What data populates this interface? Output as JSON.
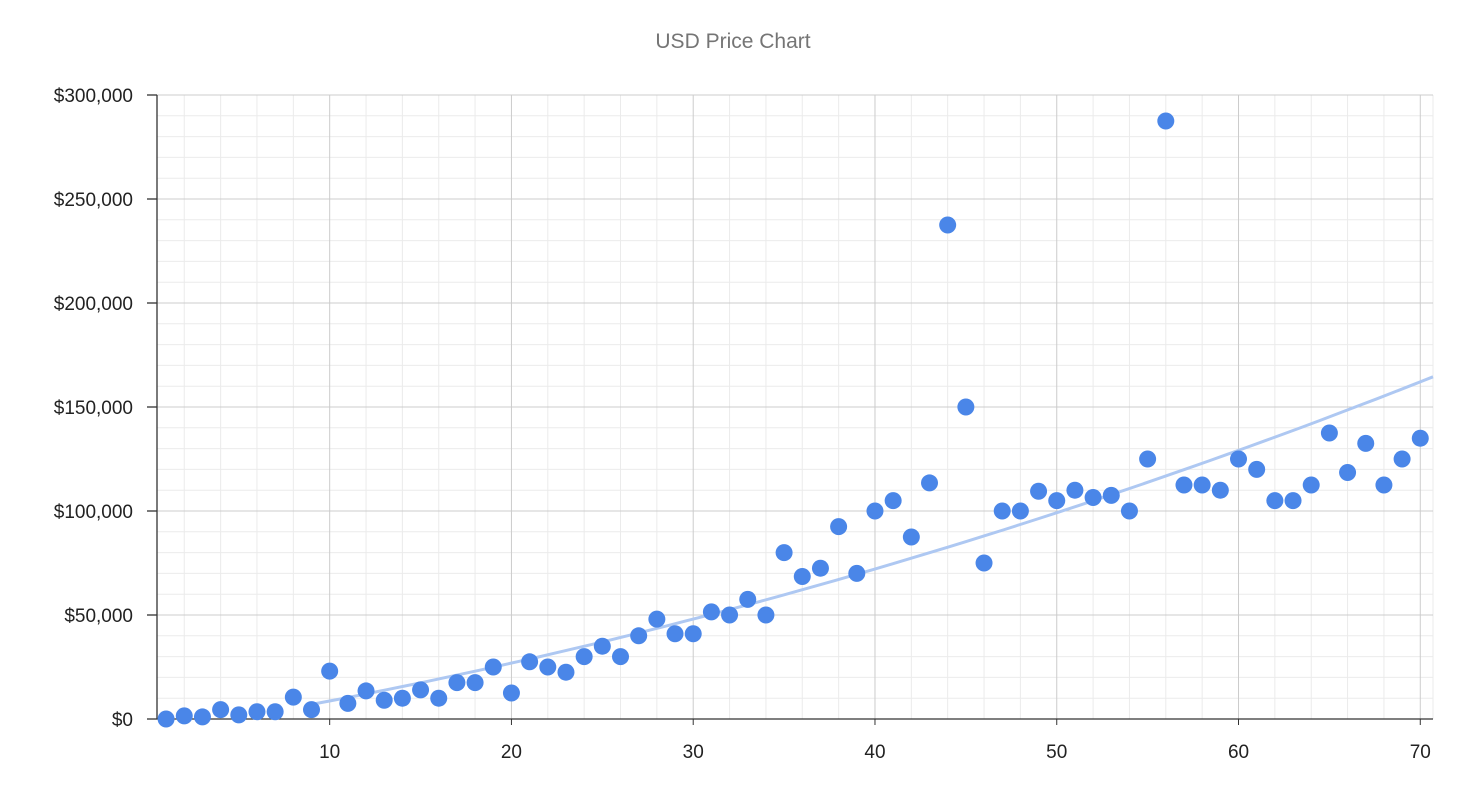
{
  "chart_data": {
    "type": "scatter",
    "title": "USD Price Chart",
    "xlabel": "",
    "ylabel": "",
    "xlim": [
      0.5,
      70.7
    ],
    "ylim": [
      0,
      300000
    ],
    "x_ticks": [
      10,
      20,
      30,
      40,
      50,
      60,
      70
    ],
    "x_tick_labels": [
      "10",
      "20",
      "30",
      "40",
      "50",
      "60",
      "70"
    ],
    "y_ticks": [
      0,
      50000,
      100000,
      150000,
      200000,
      250000,
      300000
    ],
    "y_tick_labels": [
      "$0",
      "$50,000",
      "$100,000",
      "$150,000",
      "$200,000",
      "$250,000",
      "$300,000"
    ],
    "grid": true,
    "legend": "none",
    "colors": {
      "points": "#4a86e8",
      "trendline": "#aec8f2",
      "major_grid": "#cccccc",
      "minor_grid": "#ebebeb",
      "axis": "#333333"
    },
    "series": [
      {
        "x": [
          1,
          2,
          3,
          4,
          5,
          6,
          7,
          8,
          9,
          10,
          11,
          12,
          13,
          14,
          15,
          16,
          17,
          18,
          19,
          20,
          21,
          22,
          23,
          24,
          25,
          26,
          27,
          28,
          29,
          30,
          31,
          32,
          33,
          34,
          35,
          36,
          37,
          38,
          39,
          40,
          41,
          42,
          43,
          44,
          45,
          46,
          47,
          48,
          49,
          50,
          51,
          52,
          53,
          54,
          55,
          56,
          57,
          58,
          59,
          60,
          61,
          62,
          63,
          64,
          65,
          66,
          67,
          68,
          69,
          70
        ],
        "y": [
          0,
          1500,
          1000,
          4500,
          2000,
          3500,
          3500,
          10500,
          4500,
          23000,
          7500,
          13500,
          9000,
          10000,
          14000,
          10000,
          17500,
          17500,
          25000,
          12500,
          27500,
          25000,
          22500,
          30000,
          35000,
          30000,
          40000,
          48000,
          41000,
          41000,
          51500,
          50000,
          57500,
          50000,
          80000,
          68500,
          72500,
          92500,
          70000,
          100000,
          105000,
          87500,
          113500,
          237500,
          150000,
          75000,
          100000,
          100000,
          109500,
          105000,
          110000,
          106500,
          107500,
          100000,
          125000,
          287500,
          112500,
          112500,
          110000,
          125000,
          120000,
          105000,
          105000,
          112500,
          137500,
          118500,
          132500,
          112500,
          125000,
          135000
        ]
      }
    ],
    "trendline": {
      "type": "polynomial",
      "x": [
        9,
        70.7
      ],
      "y": [
        7000,
        164500
      ]
    }
  }
}
